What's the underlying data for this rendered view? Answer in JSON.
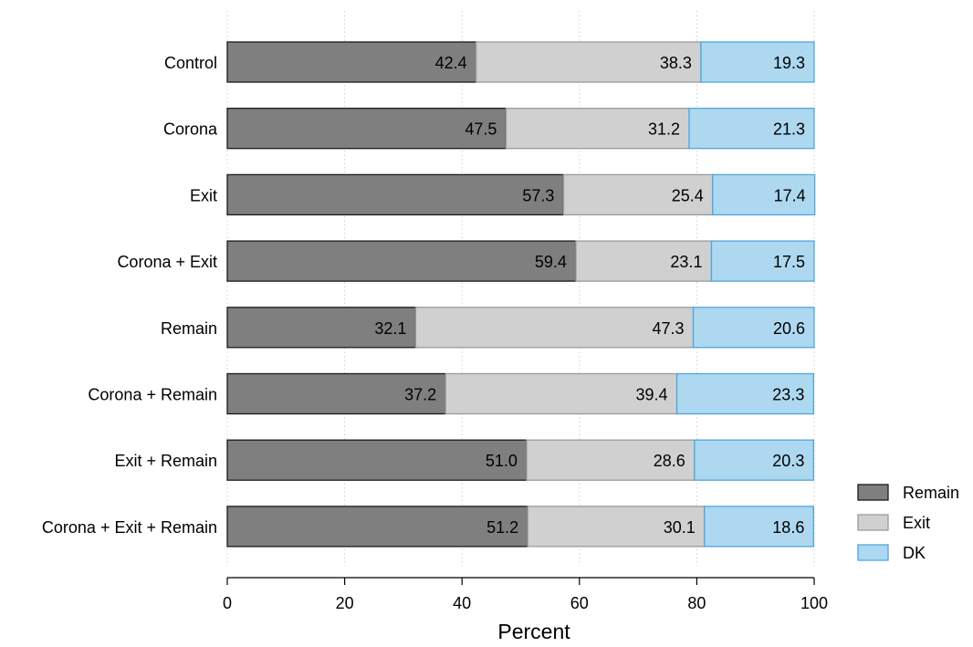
{
  "chart_data": {
    "type": "bar",
    "orientation": "horizontal",
    "stacked": true,
    "categories": [
      "Control",
      "Corona",
      "Exit",
      "Corona + Exit",
      "Remain",
      "Corona + Remain",
      "Exit + Remain",
      "Corona + Exit + Remain"
    ],
    "series": [
      {
        "name": "Remain",
        "color": "#7f7f7f",
        "values": [
          42.4,
          47.5,
          57.3,
          59.4,
          32.1,
          37.2,
          51.0,
          51.2
        ]
      },
      {
        "name": "Exit",
        "color": "#d0d0d0",
        "values": [
          38.3,
          31.2,
          25.4,
          23.1,
          47.3,
          39.4,
          28.6,
          30.1
        ]
      },
      {
        "name": "DK",
        "color": "#add8f0",
        "values": [
          19.3,
          21.3,
          17.4,
          17.5,
          20.6,
          23.3,
          20.3,
          18.6
        ]
      }
    ],
    "xlabel": "Percent",
    "xlim": [
      0,
      100
    ],
    "xticks": [
      0,
      20,
      40,
      60,
      80,
      100
    ],
    "grid": "vertical dotted",
    "legend_position": "right-bottom",
    "data_labels": true
  }
}
